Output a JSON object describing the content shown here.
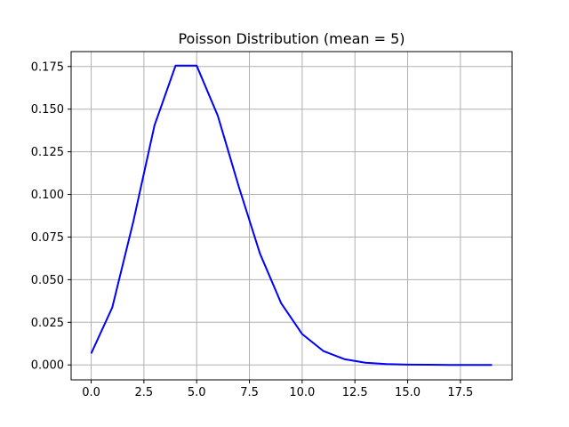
{
  "chart_data": {
    "type": "line",
    "title": "Poisson Distribution (mean = 5)",
    "xlabel": "",
    "ylabel": "",
    "xlim": [
      -0.95,
      19.95
    ],
    "ylim": [
      -0.00875,
      0.18375
    ],
    "grid": true,
    "x_ticks": [
      0.0,
      2.5,
      5.0,
      7.5,
      10.0,
      12.5,
      15.0,
      17.5
    ],
    "x_tick_labels": [
      "0.0",
      "2.5",
      "5.0",
      "7.5",
      "10.0",
      "12.5",
      "15.0",
      "17.5"
    ],
    "y_ticks": [
      0.0,
      0.025,
      0.05,
      0.075,
      0.1,
      0.125,
      0.15,
      0.175
    ],
    "y_tick_labels": [
      "0.000",
      "0.025",
      "0.050",
      "0.075",
      "0.100",
      "0.125",
      "0.150",
      "0.175"
    ],
    "series": [
      {
        "color": "#0000ff",
        "x": [
          0,
          1,
          2,
          3,
          4,
          5,
          6,
          7,
          8,
          9,
          10,
          11,
          12,
          13,
          14,
          15,
          16,
          17,
          18,
          19
        ],
        "values": [
          0.0067,
          0.0337,
          0.0842,
          0.1404,
          0.1755,
          0.1755,
          0.1462,
          0.1044,
          0.0653,
          0.0363,
          0.0181,
          0.0082,
          0.0034,
          0.0013,
          0.0005,
          0.0002,
          0.0001,
          0.0,
          0.0,
          0.0
        ]
      }
    ]
  }
}
